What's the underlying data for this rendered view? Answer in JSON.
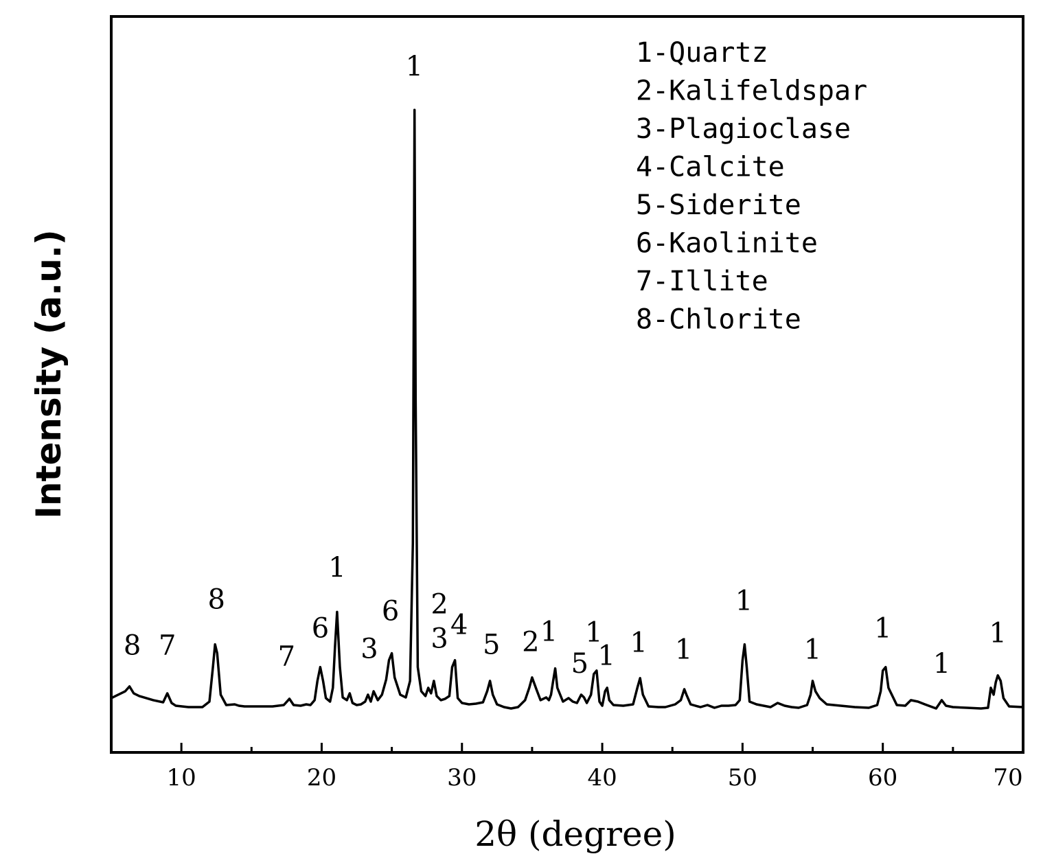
{
  "chart_data": {
    "type": "line",
    "xlabel": "2θ (degree)",
    "ylabel": "Intensity (a.u.)",
    "xlim": [
      5,
      70
    ],
    "xticks": [
      10,
      20,
      30,
      40,
      50,
      60,
      70
    ],
    "ylim": [
      0,
      1000
    ],
    "grid": false,
    "legend_placement": "top-right",
    "legend": [
      "1-Quartz",
      "2-Kalifeldspar",
      "3-Plagioclase",
      "4-Calcite",
      "5-Siderite",
      "6-Kaolinite",
      "7-Illite",
      "8-Chlorite"
    ],
    "peak_labels": [
      {
        "text": "8",
        "x": 6.5,
        "y": 78
      },
      {
        "text": "7",
        "x": 9.0,
        "y": 78
      },
      {
        "text": "8",
        "x": 12.5,
        "y": 145
      },
      {
        "text": "7",
        "x": 17.5,
        "y": 62
      },
      {
        "text": "6",
        "x": 19.9,
        "y": 103
      },
      {
        "text": "1",
        "x": 21.1,
        "y": 191
      },
      {
        "text": "3",
        "x": 23.4,
        "y": 73
      },
      {
        "text": "6",
        "x": 24.9,
        "y": 128
      },
      {
        "text": "1",
        "x": 26.6,
        "y": 918
      },
      {
        "text": "2",
        "x": 28.4,
        "y": 138
      },
      {
        "text": "3",
        "x": 28.4,
        "y": 88
      },
      {
        "text": "4",
        "x": 29.8,
        "y": 108
      },
      {
        "text": "5",
        "x": 32.1,
        "y": 79
      },
      {
        "text": "2",
        "x": 34.9,
        "y": 83
      },
      {
        "text": "1",
        "x": 36.2,
        "y": 98
      },
      {
        "text": "5",
        "x": 38.4,
        "y": 52
      },
      {
        "text": "1",
        "x": 39.4,
        "y": 97
      },
      {
        "text": "1",
        "x": 40.3,
        "y": 63
      },
      {
        "text": "1",
        "x": 42.6,
        "y": 82
      },
      {
        "text": "1",
        "x": 45.8,
        "y": 72
      },
      {
        "text": "1",
        "x": 50.1,
        "y": 143
      },
      {
        "text": "1",
        "x": 55.0,
        "y": 72
      },
      {
        "text": "1",
        "x": 60.0,
        "y": 103
      },
      {
        "text": "1",
        "x": 64.2,
        "y": 52
      },
      {
        "text": "1",
        "x": 68.2,
        "y": 96
      }
    ],
    "series": [
      {
        "color": "#000000",
        "x": [
          5.0,
          6.0,
          6.3,
          6.6,
          7.0,
          8.0,
          8.7,
          9.0,
          9.3,
          9.6,
          10.5,
          11.5,
          12.0,
          12.25,
          12.4,
          12.55,
          12.8,
          13.2,
          13.8,
          14.1,
          14.5,
          15.5,
          16.5,
          17.3,
          17.7,
          18.0,
          18.5,
          18.9,
          19.2,
          19.5,
          19.7,
          19.9,
          20.1,
          20.3,
          20.6,
          20.8,
          20.95,
          21.1,
          21.3,
          21.5,
          21.8,
          22.0,
          22.2,
          22.5,
          22.8,
          23.1,
          23.3,
          23.5,
          23.7,
          24.0,
          24.3,
          24.6,
          24.8,
          25.0,
          25.2,
          25.6,
          26.0,
          26.3,
          26.5,
          26.62,
          26.7,
          26.85,
          27.1,
          27.4,
          27.6,
          27.8,
          28.0,
          28.2,
          28.5,
          28.8,
          29.1,
          29.3,
          29.5,
          29.7,
          30.0,
          30.5,
          31.0,
          31.5,
          31.8,
          32.0,
          32.2,
          32.5,
          33.0,
          33.5,
          34.0,
          34.5,
          34.8,
          35.0,
          35.3,
          35.6,
          36.0,
          36.2,
          36.35,
          36.5,
          36.65,
          36.8,
          37.2,
          37.6,
          37.9,
          38.2,
          38.5,
          38.7,
          38.9,
          39.2,
          39.4,
          39.6,
          39.8,
          40.0,
          40.2,
          40.35,
          40.5,
          40.8,
          41.5,
          42.2,
          42.5,
          42.7,
          42.9,
          43.3,
          44.0,
          44.5,
          45.2,
          45.6,
          45.85,
          46.0,
          46.3,
          47.0,
          47.5,
          48.0,
          48.5,
          49.0,
          49.5,
          49.8,
          50.0,
          50.15,
          50.3,
          50.5,
          51.0,
          52.0,
          52.5,
          53.0,
          53.5,
          54.0,
          54.6,
          54.85,
          55.0,
          55.2,
          55.5,
          56.0,
          57.0,
          58.0,
          59.0,
          59.6,
          59.85,
          60.0,
          60.2,
          60.4,
          61.0,
          61.6,
          62.0,
          62.5,
          63.0,
          63.8,
          64.0,
          64.2,
          64.5,
          65.0,
          66.0,
          67.0,
          67.5,
          67.7,
          67.9,
          68.05,
          68.2,
          68.4,
          68.6,
          69.0,
          70.0
        ],
        "y": [
          15,
          25,
          32,
          22,
          18,
          12,
          9,
          22,
          8,
          4,
          2,
          2,
          10,
          60,
          93,
          80,
          20,
          5,
          6,
          4,
          3,
          3,
          3,
          5,
          14,
          5,
          4,
          6,
          5,
          12,
          40,
          60,
          40,
          15,
          10,
          30,
          90,
          140,
          60,
          16,
          12,
          22,
          8,
          5,
          6,
          10,
          20,
          10,
          25,
          12,
          20,
          42,
          70,
          80,
          45,
          20,
          16,
          40,
          240,
          868,
          450,
          60,
          25,
          18,
          30,
          22,
          40,
          18,
          12,
          14,
          18,
          60,
          70,
          15,
          8,
          6,
          7,
          9,
          25,
          40,
          20,
          6,
          2,
          0,
          2,
          12,
          30,
          45,
          28,
          12,
          16,
          12,
          20,
          40,
          58,
          30,
          10,
          15,
          10,
          8,
          20,
          16,
          8,
          20,
          50,
          55,
          10,
          4,
          25,
          30,
          12,
          5,
          4,
          6,
          30,
          44,
          20,
          3,
          2,
          2,
          6,
          12,
          28,
          20,
          6,
          2,
          5,
          1,
          4,
          4,
          5,
          12,
          70,
          93,
          60,
          10,
          6,
          2,
          8,
          4,
          2,
          1,
          5,
          20,
          40,
          25,
          15,
          6,
          4,
          2,
          1,
          5,
          25,
          55,
          60,
          30,
          5,
          4,
          12,
          10,
          6,
          0,
          6,
          12,
          4,
          2,
          1,
          0,
          1,
          30,
          20,
          38,
          48,
          40,
          15,
          3,
          2
        ]
      }
    ]
  }
}
